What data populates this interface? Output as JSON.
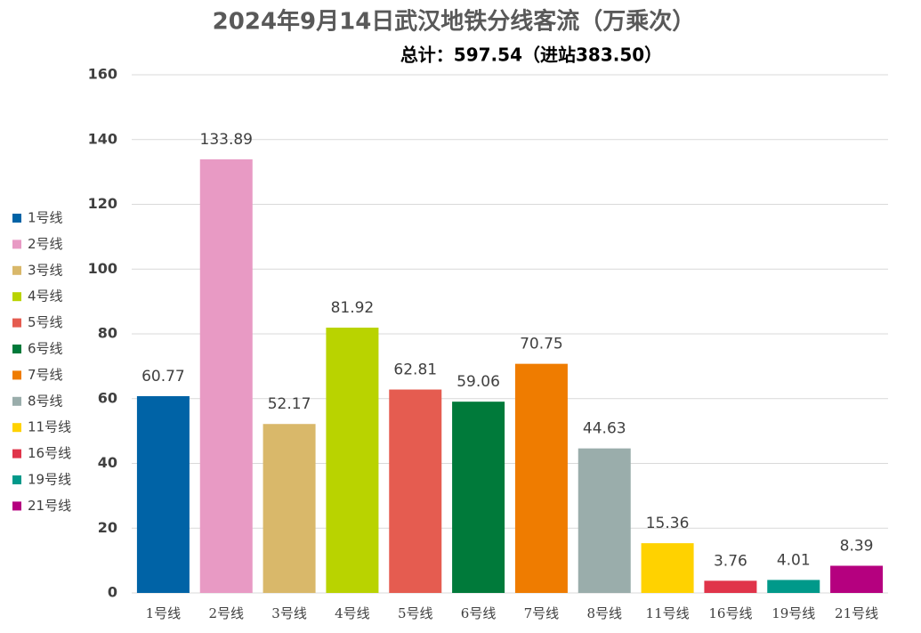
{
  "chart_data": {
    "type": "bar",
    "title": "2024年9月14日武汉地铁分线客流（万乘次）",
    "subtitle": "总计：597.54（进站383.50）",
    "categories": [
      "1号线",
      "2号线",
      "3号线",
      "4号线",
      "5号线",
      "6号线",
      "7号线",
      "8号线",
      "11号线",
      "16号线",
      "19号线",
      "21号线"
    ],
    "values": [
      60.77,
      133.89,
      52.17,
      81.92,
      62.81,
      59.06,
      70.75,
      44.63,
      15.36,
      3.76,
      4.01,
      8.39
    ],
    "colors": [
      "#0063a6",
      "#e89ac4",
      "#d9b86a",
      "#b9d300",
      "#e55c50",
      "#007a3a",
      "#ef7c00",
      "#9aadab",
      "#ffd200",
      "#e0344a",
      "#00998a",
      "#b5007f"
    ],
    "ylim": [
      0,
      160
    ],
    "yticks": [
      0,
      20,
      40,
      60,
      80,
      100,
      120,
      140,
      160
    ],
    "grid": true,
    "legend": "left"
  }
}
